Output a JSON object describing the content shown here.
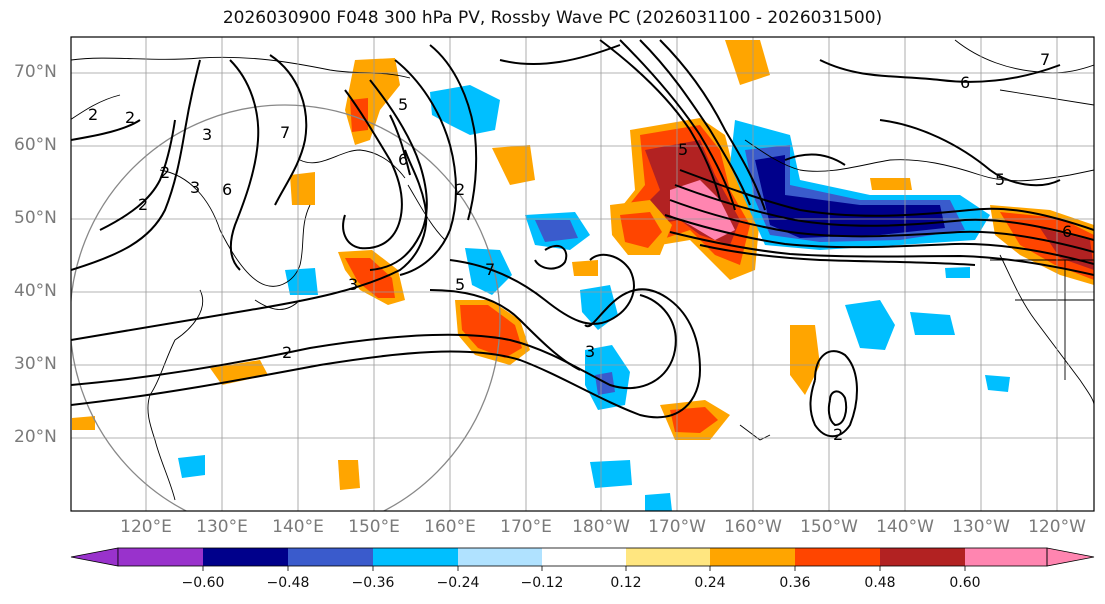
{
  "title": "2026030900 F048 300 hPa PV, Rossby Wave PC (2026031100 - 2026031500)",
  "lat_labels": [
    "70°N",
    "60°N",
    "50°N",
    "40°N",
    "30°N",
    "20°N"
  ],
  "lon_labels": [
    "120°E",
    "130°E",
    "140°E",
    "150°E",
    "160°E",
    "170°E",
    "180°W",
    "170°W",
    "160°W",
    "150°W",
    "140°W",
    "130°W",
    "120°W"
  ],
  "contour_labels": [
    "2",
    "2",
    "3",
    "2",
    "5",
    "6",
    "7",
    "5",
    "3",
    "3",
    "2",
    "6",
    "7",
    "5",
    "6",
    "2",
    "3",
    "2",
    "6",
    "5",
    "2",
    "7"
  ],
  "colorbar": {
    "tick_labels": [
      "−0.60",
      "−0.48",
      "−0.36",
      "−0.24",
      "−0.12",
      "0.12",
      "0.24",
      "0.36",
      "0.48",
      "0.60"
    ],
    "colors": [
      "#9932cc",
      "#00008b",
      "#3a5bcc",
      "#00bfff",
      "#b0e2ff",
      "#ffffff",
      "#ffe680",
      "#ffa500",
      "#ff4500",
      "#b22222",
      "#ff85b0"
    ]
  }
}
